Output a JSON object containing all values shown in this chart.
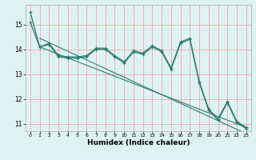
{
  "title": "",
  "xlabel": "Humidex (Indice chaleur)",
  "background_color": "#dff2f2",
  "grid_color_h": "#e8a8a8",
  "grid_color_v": "#e8a8a8",
  "line_color": "#2d7d6e",
  "xlim": [
    -0.5,
    23.5
  ],
  "ylim": [
    10.7,
    15.8
  ],
  "yticks": [
    11,
    12,
    13,
    14,
    15
  ],
  "xticks": [
    0,
    1,
    2,
    3,
    4,
    5,
    6,
    7,
    8,
    9,
    10,
    11,
    12,
    13,
    14,
    15,
    16,
    17,
    18,
    19,
    20,
    21,
    22,
    23
  ],
  "line1": [
    15.5,
    14.1,
    14.25,
    13.75,
    13.7,
    13.7,
    13.75,
    14.05,
    14.05,
    13.75,
    13.5,
    13.95,
    13.85,
    14.15,
    13.95,
    13.25,
    14.3,
    14.45,
    12.7,
    11.6,
    11.2,
    11.9,
    11.1,
    10.85
  ],
  "line2": [
    15.1,
    14.1,
    14.2,
    13.7,
    13.65,
    13.65,
    13.7,
    14.0,
    14.0,
    13.7,
    13.45,
    13.9,
    13.8,
    14.1,
    13.9,
    13.2,
    14.25,
    14.4,
    12.65,
    11.55,
    11.15,
    11.85,
    11.05,
    10.8
  ],
  "trend1_x": [
    1,
    23
  ],
  "trend1_y": [
    14.1,
    10.85
  ],
  "trend2_x": [
    1,
    23
  ],
  "trend2_y": [
    14.45,
    10.6
  ]
}
